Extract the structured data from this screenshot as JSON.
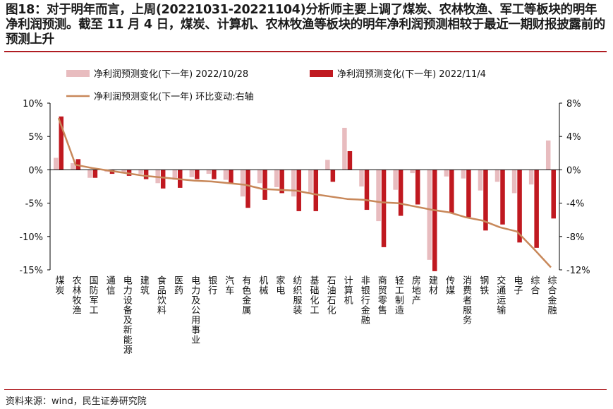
{
  "title": "图18：对于明年而言，上周(20221031-20221104)分析师主要上调了煤炭、农林牧渔、军工等板块的明年净利润预测。截至 11 月 4 日，煤炭、计算机、农林牧渔等板块的明年净利润预测相较于最近一期财报披露前的预测上升",
  "source": "资料来源：wind，民生证券研究院",
  "colors": {
    "bar1": "#e8bcbf",
    "bar2": "#c01920",
    "line": "#c8885a",
    "rule": "#b01d22"
  },
  "chart_data": {
    "type": "bar",
    "categories": [
      "煤炭",
      "农林牧渔",
      "国防军工",
      "通信",
      "电力设备及新能源",
      "建筑",
      "食品饮料",
      "医药",
      "电力及公用事业",
      "银行",
      "汽车",
      "有色金属",
      "机械",
      "家电",
      "纺织服装",
      "基础化工",
      "石油石化",
      "计算机",
      "非银行金融",
      "商贸零售",
      "轻工制造",
      "房地产",
      "建材",
      "传媒",
      "消费者服务",
      "钢铁",
      "交通运输",
      "电子",
      "综合",
      "综合金融"
    ],
    "series": [
      {
        "name": "净利润预测变化(下一年) 2022/10/28",
        "axis": "left",
        "values": [
          1.8,
          1.0,
          -1.2,
          -0.3,
          -0.5,
          -0.6,
          -2.0,
          -1.5,
          -1.1,
          -0.6,
          -1.5,
          -4.0,
          -2.0,
          -2.6,
          -4.0,
          -3.5,
          1.5,
          6.3,
          -2.5,
          -7.7,
          -3.0,
          -0.5,
          -13.5,
          -1.0,
          -1.3,
          -3.1,
          -1.8,
          -3.5,
          -2.2,
          4.4
        ]
      },
      {
        "name": "净利润预测变化(下一年) 2022/11/4",
        "axis": "left",
        "values": [
          8.0,
          1.6,
          -1.2,
          -0.6,
          -0.9,
          -1.4,
          -2.8,
          -2.7,
          -1.4,
          -1.4,
          -2.0,
          -5.7,
          -4.5,
          -3.5,
          -6.2,
          -6.2,
          -1.8,
          2.8,
          -6.0,
          -11.6,
          -6.9,
          -5.2,
          -15.2,
          -6.5,
          -7.1,
          -9.1,
          -8.2,
          -10.9,
          -11.7,
          -7.3
        ]
      },
      {
        "name": "净利润预测变化(下一年) 环比变动:右轴",
        "axis": "right",
        "type": "line",
        "values": [
          6.2,
          0.6,
          0.2,
          -0.1,
          -0.4,
          -0.7,
          -0.9,
          -1.1,
          -1.3,
          -1.4,
          -1.6,
          -1.8,
          -2.3,
          -2.4,
          -2.5,
          -2.9,
          -3.2,
          -3.5,
          -3.6,
          -3.9,
          -4.0,
          -4.4,
          -4.8,
          -5.1,
          -5.7,
          -6.1,
          -6.9,
          -7.4,
          -9.5,
          -11.7
        ]
      }
    ],
    "left_axis": {
      "ylim": [
        -15,
        10
      ],
      "ticks": [
        "10%",
        "5%",
        "0%",
        "-5%",
        "-10%",
        "-15%"
      ]
    },
    "right_axis": {
      "ylim": [
        -12,
        8
      ],
      "ticks": [
        "8%",
        "4%",
        "0%",
        "-4%",
        "-8%",
        "-12%"
      ]
    },
    "legend_position": "top"
  }
}
